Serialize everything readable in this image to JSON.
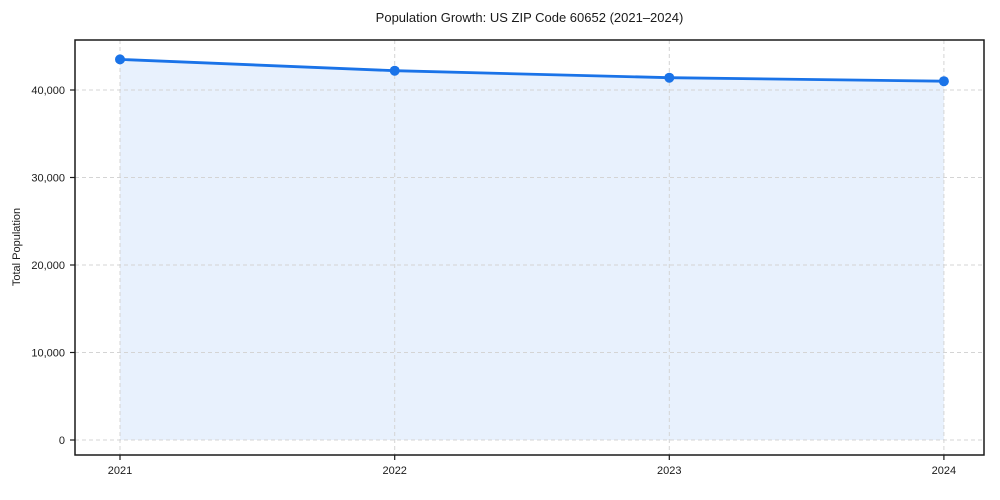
{
  "figure": {
    "background": "#ffffff"
  },
  "chart_data": {
    "type": "line",
    "title": "Population Growth: US ZIP Code 60652 (2021–2024)",
    "xlabel": "",
    "ylabel": "Total Population",
    "x": [
      2021,
      2022,
      2023,
      2024
    ],
    "xtick_labels": [
      "2021",
      "2022",
      "2023",
      "2024"
    ],
    "series": [
      {
        "name": "Total Population",
        "values": [
          43500,
          42200,
          41400,
          41000
        ]
      }
    ],
    "yticks": [
      0,
      10000,
      20000,
      30000,
      40000
    ],
    "ytick_labels": [
      "0",
      "10,000",
      "20,000",
      "30,000",
      "40,000"
    ],
    "xlim": [
      2020.836,
      2024.146
    ],
    "ylim": [
      -1714,
      45714
    ],
    "grid": true,
    "grid_style": "dashed",
    "legend_position": "none",
    "area_fill": true,
    "area_baseline": 0,
    "marker": "circle",
    "colors": {
      "line": "#1a73e8",
      "marker": "#1a73e8",
      "fill": "rgba(26,115,232,0.10)",
      "grid": "#d4d4d4",
      "spine": "#1a1a1a",
      "tick": "#1a1a1a",
      "text": "#1a1a1a"
    }
  }
}
